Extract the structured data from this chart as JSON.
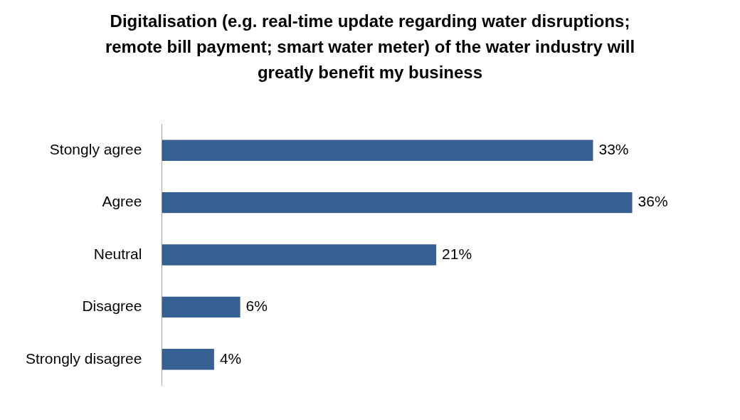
{
  "chart_data": {
    "type": "bar",
    "orientation": "horizontal",
    "title": "Digitalisation (e.g. real-time update regarding water disruptions; remote bill payment; smart water meter) of the water industry will greatly benefit my business",
    "categories": [
      "Stongly agree",
      "Agree",
      "Neutral",
      "Disagree",
      "Strongly disagree"
    ],
    "values": [
      33,
      36,
      21,
      6,
      4
    ],
    "value_labels": [
      "33%",
      "36%",
      "21%",
      "6%",
      "4%"
    ],
    "color": "#376092"
  }
}
